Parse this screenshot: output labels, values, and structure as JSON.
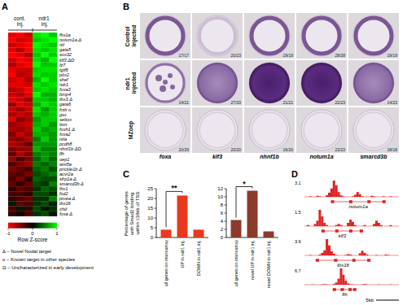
{
  "chart_data": [
    {
      "type": "heatmap",
      "panel": "A",
      "column_groups": [
        "cont. inj.",
        "ndr1 inj."
      ],
      "rows": [
        "fhx1a",
        "notum1a Δ",
        "ntl",
        "gata5",
        "sox32",
        "klf3 ΔΩ",
        "fz7",
        "tgif6",
        "pitx2",
        "shef",
        "ndr1",
        "foxa3",
        "bmp4",
        "tbx3 Δ",
        "gata6",
        "frzb ο",
        "gsc",
        "sebox",
        "bon",
        "foxh1 Δ",
        "foxa2",
        "ntla",
        "pcdh8",
        "nhnf1b ΔΩ",
        "flh",
        "oep1",
        "wnt5a",
        "prickle1b Δ",
        "acvr2a",
        "sfrp1a Δ",
        "smarcd3b Δ",
        "lhx1",
        "fcd2",
        "pmea Δ",
        "tbx16",
        "chd",
        "foxa Δ"
      ],
      "cells": [
        [
          -0.9,
          -1,
          -0.8,
          0.9,
          1,
          0.8
        ],
        [
          -1,
          -0.8,
          -0.9,
          0.8,
          0.9,
          1
        ],
        [
          -0.8,
          -0.9,
          -1,
          1,
          0.9,
          0.8
        ],
        [
          -0.9,
          -0.7,
          -1,
          0.9,
          0.8,
          0.9
        ],
        [
          -1,
          -0.9,
          -0.7,
          0.8,
          1,
          0.8
        ],
        [
          -0.8,
          -1,
          -0.9,
          0.9,
          0.7,
          1
        ],
        [
          -0.7,
          -0.9,
          -1,
          1,
          0.8,
          0.8
        ],
        [
          -0.9,
          -0.8,
          -0.8,
          0.8,
          0.9,
          0.9
        ],
        [
          -1,
          -0.7,
          -0.8,
          0.9,
          0.8,
          0.8
        ],
        [
          -0.8,
          -0.9,
          -0.7,
          0.7,
          1,
          0.8
        ],
        [
          -0.9,
          -0.9,
          -0.8,
          0.9,
          0.8,
          0.9
        ],
        [
          -0.7,
          -0.8,
          -1,
          0.8,
          0.9,
          0.8
        ],
        [
          -0.8,
          -0.7,
          -0.9,
          1,
          0.7,
          0.7
        ],
        [
          -0.9,
          -0.8,
          -0.6,
          0.8,
          0.8,
          0.7
        ],
        [
          -0.6,
          -0.9,
          -0.8,
          0.7,
          0.9,
          0.8
        ],
        [
          -0.8,
          -0.6,
          -0.8,
          0.9,
          0.6,
          0.8
        ],
        [
          -0.7,
          -0.8,
          -0.7,
          0.8,
          0.7,
          0.8
        ],
        [
          -0.9,
          -0.5,
          -0.7,
          0.6,
          0.8,
          0.8
        ],
        [
          -0.6,
          -0.7,
          -0.8,
          0.7,
          0.8,
          0.6
        ],
        [
          -0.7,
          -0.6,
          -0.7,
          0.8,
          0.6,
          0.7
        ],
        [
          -0.5,
          -0.8,
          -0.6,
          0.7,
          0.7,
          0.6
        ],
        [
          -0.6,
          -0.5,
          -0.7,
          0.5,
          0.8,
          0.6
        ],
        [
          -0.7,
          -0.6,
          -0.4,
          0.6,
          0.6,
          0.6
        ],
        [
          -0.5,
          -0.6,
          -0.6,
          0.7,
          0.5,
          0.5
        ],
        [
          -0.4,
          -0.7,
          -0.5,
          0.5,
          0.6,
          0.5
        ],
        [
          -0.6,
          -0.3,
          -0.5,
          0.4,
          0.6,
          0.4
        ],
        [
          -0.3,
          -0.5,
          -0.6,
          0.5,
          0.4,
          0.5
        ],
        [
          -0.5,
          -0.4,
          -0.3,
          0.4,
          0.5,
          0.3
        ],
        [
          -0.4,
          -0.3,
          -0.5,
          0.3,
          0.4,
          0.5
        ],
        [
          -0.3,
          -0.5,
          -0.2,
          0.4,
          0.3,
          0.3
        ],
        [
          -0.4,
          -0.2,
          -0.4,
          0.3,
          0.2,
          0.5
        ],
        [
          -0.2,
          -0.4,
          -0.3,
          0.2,
          0.4,
          0.3
        ],
        [
          -0.3,
          -0.3,
          -0.2,
          0.3,
          0.3,
          0.2
        ],
        [
          -0.2,
          -0.3,
          -0.4,
          0.2,
          0.2,
          0.5
        ],
        [
          0.1,
          -0.4,
          -0.3,
          0.2,
          0.3,
          0.1
        ],
        [
          -0.3,
          0.1,
          -0.2,
          0.3,
          0.1,
          0.2
        ],
        [
          -0.2,
          -0.1,
          -0.3,
          0.2,
          0.3,
          0.1
        ]
      ],
      "colorbar": {
        "range": [
          -1,
          1
        ],
        "ticks": [
          -1,
          0,
          1
        ],
        "title": "Row Z-score",
        "colors": [
          "#ff0000",
          "#000000",
          "#00ff00"
        ]
      },
      "notes": [
        "Δ – Novel Nodal target",
        "ο – Known target in other species",
        "Ω – Uncharacterized in early development"
      ]
    },
    {
      "type": "bar",
      "panel": "C",
      "ylabel": "Percentage of genes with Smad2 binding within ±10kb of TSS",
      "categories": [
        "all genes on microarray",
        "UP in ndr1 inj.",
        "DOWN in ndr1 inj."
      ],
      "values": [
        4,
        21.5,
        4
      ],
      "color": "#e8391f",
      "ylim": [
        0,
        25
      ],
      "yticks": [
        0,
        5,
        10,
        15,
        20,
        25
      ],
      "annotation": "**"
    },
    {
      "type": "bar",
      "categories": [
        "all genes on microarray",
        "novel UP in ndr1 inj.",
        "novel DOWN in ndr1 inj."
      ],
      "values": [
        4.3,
        11.5,
        1.5
      ],
      "color": "#8c3a2c",
      "ylim": [
        0,
        12
      ],
      "yticks": [
        0,
        2,
        4,
        6,
        8,
        10,
        12
      ],
      "annotation": "*"
    },
    {
      "type": "tracks",
      "panel": "D",
      "color": "#e02424",
      "scale_bar": "5kb",
      "tracks": [
        {
          "gene": "notum1a",
          "ylim": [
            0,
            3.1
          ],
          "values": [
            0,
            0,
            0.1,
            0,
            0,
            0.2,
            0.1,
            0,
            0,
            0.3,
            0.8,
            1.6,
            3.1,
            2.2,
            0.9,
            0.3,
            0.1,
            0,
            0,
            0,
            0.1,
            0.4,
            0.9,
            0.5,
            0.1,
            0,
            0,
            0,
            0.2,
            0.1,
            0,
            0,
            0,
            0.1,
            0,
            0,
            0.1,
            0,
            0,
            0
          ]
        },
        {
          "gene": "klf3",
          "ylim": [
            0,
            1.5
          ],
          "values": [
            0,
            0.1,
            0,
            0,
            0.2,
            0.5,
            1.5,
            0.9,
            0.3,
            0.1,
            0,
            0,
            0,
            0.1,
            0.2,
            0.1,
            0,
            0,
            0.3,
            0.6,
            0.4,
            0.1,
            0,
            0,
            0,
            0.1,
            0,
            0,
            0,
            0.2,
            0.5,
            0.3,
            0.1,
            0,
            0,
            0,
            0.1,
            0,
            0,
            0
          ]
        },
        {
          "gene": "tbx16",
          "ylim": [
            0,
            3.9
          ],
          "values": [
            0,
            0,
            0.1,
            0,
            0,
            0,
            0.2,
            0.6,
            1.2,
            3.9,
            2.4,
            1.0,
            0.4,
            0.1,
            0,
            0,
            0,
            0.1,
            0.3,
            0.2,
            0,
            0,
            0,
            0.5,
            1.1,
            0.6,
            0.2,
            0,
            0,
            0,
            0.1,
            0,
            0,
            0,
            0.2,
            0.1,
            0,
            0,
            0,
            0
          ]
        },
        {
          "gene": "flh",
          "ylim": [
            0,
            6.7
          ],
          "values": [
            0,
            0,
            0,
            0.1,
            0,
            0,
            0,
            0.1,
            0.2,
            0.1,
            0,
            0,
            0.3,
            0.9,
            2.5,
            6.7,
            4.1,
            1.6,
            0.5,
            0.2,
            0.1,
            0,
            0,
            0,
            0.1,
            0.3,
            0.1,
            0,
            0,
            0,
            0,
            0.1,
            0,
            0,
            0,
            0,
            0.1,
            0,
            0,
            0
          ]
        }
      ]
    }
  ],
  "images": {
    "panel": "B",
    "rows": [
      "Control injected",
      "ndr1 injected",
      "MZoep"
    ],
    "columns": [
      "foxa",
      "klf3",
      "nhnf1b",
      "notum1a",
      "smarcd3b"
    ],
    "counts": [
      [
        "17/17",
        "20/23",
        "19/19",
        "28/28",
        "19/19"
      ],
      [
        "14/21",
        "27/33",
        "21/21",
        "22/23",
        "14/23"
      ],
      [
        "20/26",
        "20/20",
        "16/20",
        "23/23",
        "18/18"
      ]
    ]
  }
}
